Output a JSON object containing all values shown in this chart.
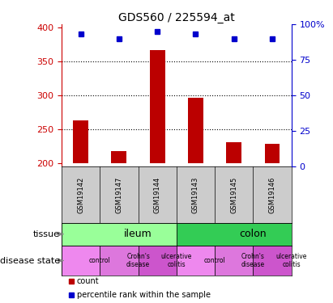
{
  "title": "GDS560 / 225594_at",
  "samples": [
    "GSM19142",
    "GSM19147",
    "GSM19144",
    "GSM19143",
    "GSM19145",
    "GSM19146"
  ],
  "counts": [
    263,
    218,
    367,
    297,
    231,
    229
  ],
  "percentiles": [
    93,
    90,
    95,
    93,
    90,
    90
  ],
  "ylim_left": [
    195,
    405
  ],
  "ylim_right": [
    0,
    100
  ],
  "yticks_left": [
    200,
    250,
    300,
    350,
    400
  ],
  "yticks_right": [
    0,
    25,
    50,
    75,
    100
  ],
  "bar_color": "#bb0000",
  "dot_color": "#0000cc",
  "sample_bg_color": "#cccccc",
  "tissue_groups": [
    {
      "label": "ileum",
      "start": 0,
      "end": 3,
      "color": "#99ff99"
    },
    {
      "label": "colon",
      "start": 3,
      "end": 6,
      "color": "#33cc55"
    }
  ],
  "disease_groups": [
    {
      "label": "control",
      "start": 0,
      "end": 1,
      "color": "#ee88ee"
    },
    {
      "label": "Crohn's\ndisease",
      "start": 1,
      "end": 2,
      "color": "#dd77dd"
    },
    {
      "label": "ulcerative\ncolitis",
      "start": 2,
      "end": 3,
      "color": "#cc55cc"
    },
    {
      "label": "control",
      "start": 3,
      "end": 4,
      "color": "#ee88ee"
    },
    {
      "label": "Crohn's\ndisease",
      "start": 4,
      "end": 5,
      "color": "#dd77dd"
    },
    {
      "label": "ulcerative\ncolitis",
      "start": 5,
      "end": 6,
      "color": "#cc55cc"
    }
  ],
  "legend_count_color": "#bb0000",
  "legend_pct_color": "#0000cc",
  "left_axis_color": "#cc0000",
  "right_axis_color": "#0000cc",
  "dotted_lines": [
    250,
    300,
    350
  ],
  "bar_bottom": 200
}
